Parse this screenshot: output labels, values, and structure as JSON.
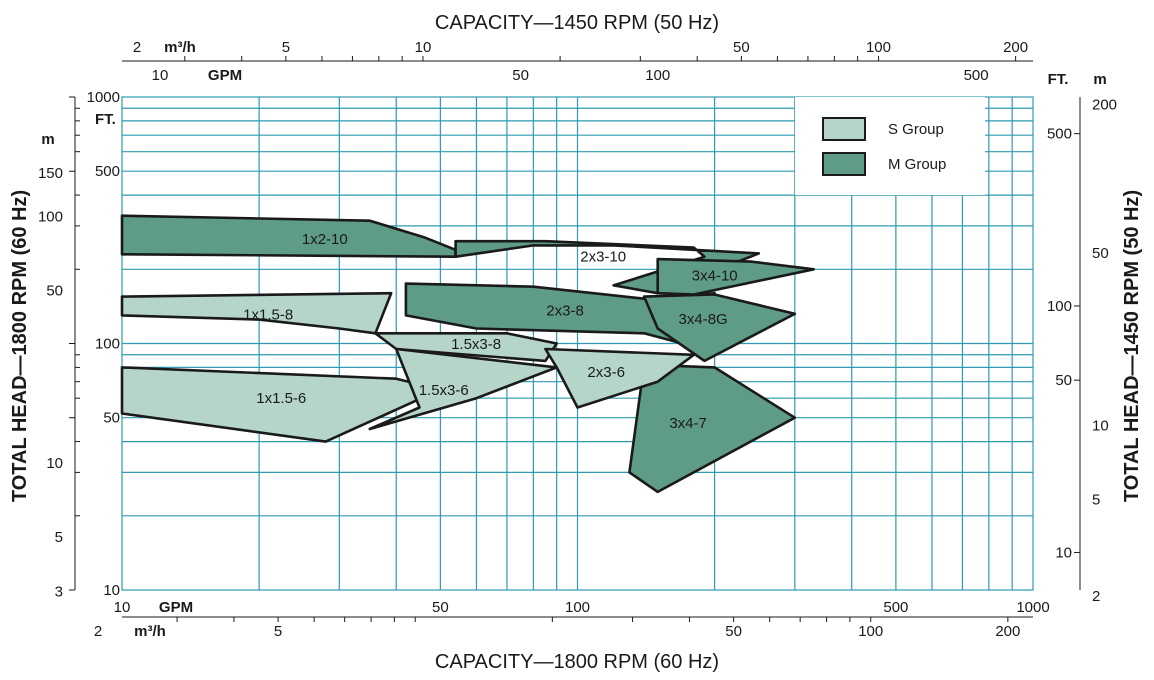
{
  "chart_data": {
    "type": "area",
    "title_top": "CAPACITY—1450 RPM (50 Hz)",
    "title_bottom": "CAPACITY—1800 RPM (60 Hz)",
    "ylabel_left": "TOTAL HEAD—1800 RPM (60 Hz)",
    "ylabel_right": "TOTAL HEAD—1450 RPM (50 Hz)",
    "x_scale": "log",
    "y_scale": "log",
    "xlim_gpm": [
      10,
      1000
    ],
    "ylim_ft": [
      10,
      1000
    ],
    "grid": true,
    "legend_position": "top-right",
    "axes": {
      "bottom_gpm": {
        "unit": "GPM",
        "min": 10,
        "max": 1000,
        "ticks": [
          "10",
          "50",
          "100",
          "500",
          "1000"
        ]
      },
      "bottom_m3h": {
        "unit": "m³/h",
        "min": 2,
        "max": 200,
        "ticks": [
          "2",
          "5",
          "50",
          "100",
          "200"
        ]
      },
      "top_m3h": {
        "unit": "m³/h",
        "min": 2,
        "max": 200,
        "ticks": [
          "2",
          "5",
          "10",
          "50",
          "100",
          "200"
        ]
      },
      "top_gpm": {
        "unit": "GPM",
        "min": 10,
        "max": 1000,
        "ticks": [
          "10",
          "50",
          "100",
          "500"
        ]
      },
      "left_m": {
        "unit": "m",
        "min": 3,
        "max": 150,
        "ticks": [
          "150",
          "100",
          "50",
          "10",
          "5",
          "3"
        ]
      },
      "left_ft": {
        "unit": "FT.",
        "min": 10,
        "max": 1000,
        "ticks": [
          "1000",
          "500",
          "100",
          "50",
          "10"
        ]
      },
      "right_ft": {
        "unit": "FT.",
        "min": 10,
        "max": 1000,
        "ticks": [
          "500",
          "100",
          "50",
          "10"
        ]
      },
      "right_m": {
        "unit": "m",
        "min": 2,
        "max": 200,
        "ticks": [
          "200",
          "50",
          "10",
          "5",
          "2"
        ]
      }
    },
    "legend": [
      {
        "label": "S Group",
        "color": "#b5d5c9"
      },
      {
        "label": "M Group",
        "color": "#5e9c86"
      }
    ],
    "colors": {
      "grid": "#2e9bb0",
      "s_group": "#b5d5c9",
      "m_group": "#5e9c86",
      "outline": "#1a1a1a"
    },
    "regions": [
      {
        "label": "1x2-10",
        "group": "M",
        "points": [
          [
            10,
            330
          ],
          [
            35,
            315
          ],
          [
            46,
            270
          ],
          [
            54,
            240
          ],
          [
            54,
            225
          ],
          [
            10,
            230
          ]
        ]
      },
      {
        "label": "2x3-10",
        "group": "M",
        "points": [
          [
            54,
            260
          ],
          [
            85,
            260
          ],
          [
            180,
            245
          ],
          [
            190,
            225
          ],
          [
            120,
            172
          ],
          [
            150,
            160
          ],
          [
            250,
            232
          ],
          [
            120,
            250
          ],
          [
            80,
            250
          ],
          [
            54,
            225
          ]
        ]
      },
      {
        "label": "3x4-10",
        "group": "M",
        "points": [
          [
            150,
            220
          ],
          [
            240,
            215
          ],
          [
            330,
            200
          ],
          [
            180,
            158
          ],
          [
            150,
            160
          ]
        ]
      },
      {
        "label": "2x3-8",
        "group": "M",
        "points": [
          [
            42,
            175
          ],
          [
            80,
            170
          ],
          [
            150,
            150
          ],
          [
            200,
            160
          ],
          [
            170,
            100
          ],
          [
            140,
            110
          ],
          [
            60,
            115
          ],
          [
            42,
            130
          ]
        ]
      },
      {
        "label": "3x4-8G",
        "group": "M",
        "points": [
          [
            140,
            155
          ],
          [
            200,
            158
          ],
          [
            300,
            132
          ],
          [
            190,
            85
          ],
          [
            150,
            115
          ]
        ]
      },
      {
        "label": "3x4-7",
        "group": "M",
        "points": [
          [
            140,
            82
          ],
          [
            200,
            80
          ],
          [
            300,
            50
          ],
          [
            150,
            25
          ],
          [
            130,
            30
          ]
        ]
      },
      {
        "label": "1x1.5-8",
        "group": "S",
        "points": [
          [
            10,
            155
          ],
          [
            39,
            160
          ],
          [
            36,
            110
          ],
          [
            30,
            115
          ],
          [
            20,
            125
          ],
          [
            10,
            130
          ]
        ]
      },
      {
        "label": "1x1.5-6",
        "group": "S",
        "points": [
          [
            10,
            80
          ],
          [
            40,
            72
          ],
          [
            50,
            65
          ],
          [
            28,
            40
          ],
          [
            10,
            52
          ]
        ]
      },
      {
        "label": "1.5x3-8",
        "group": "S",
        "points": [
          [
            36,
            110
          ],
          [
            70,
            110
          ],
          [
            90,
            100
          ],
          [
            85,
            85
          ],
          [
            40,
            95
          ]
        ]
      },
      {
        "label": "1.5x3-6",
        "group": "S",
        "points": [
          [
            40,
            95
          ],
          [
            90,
            80
          ],
          [
            60,
            60
          ],
          [
            35,
            45
          ],
          [
            45,
            55
          ]
        ]
      },
      {
        "label": "2x3-6",
        "group": "S",
        "points": [
          [
            85,
            95
          ],
          [
            180,
            90
          ],
          [
            150,
            70
          ],
          [
            100,
            55
          ],
          [
            90,
            80
          ]
        ]
      }
    ]
  }
}
